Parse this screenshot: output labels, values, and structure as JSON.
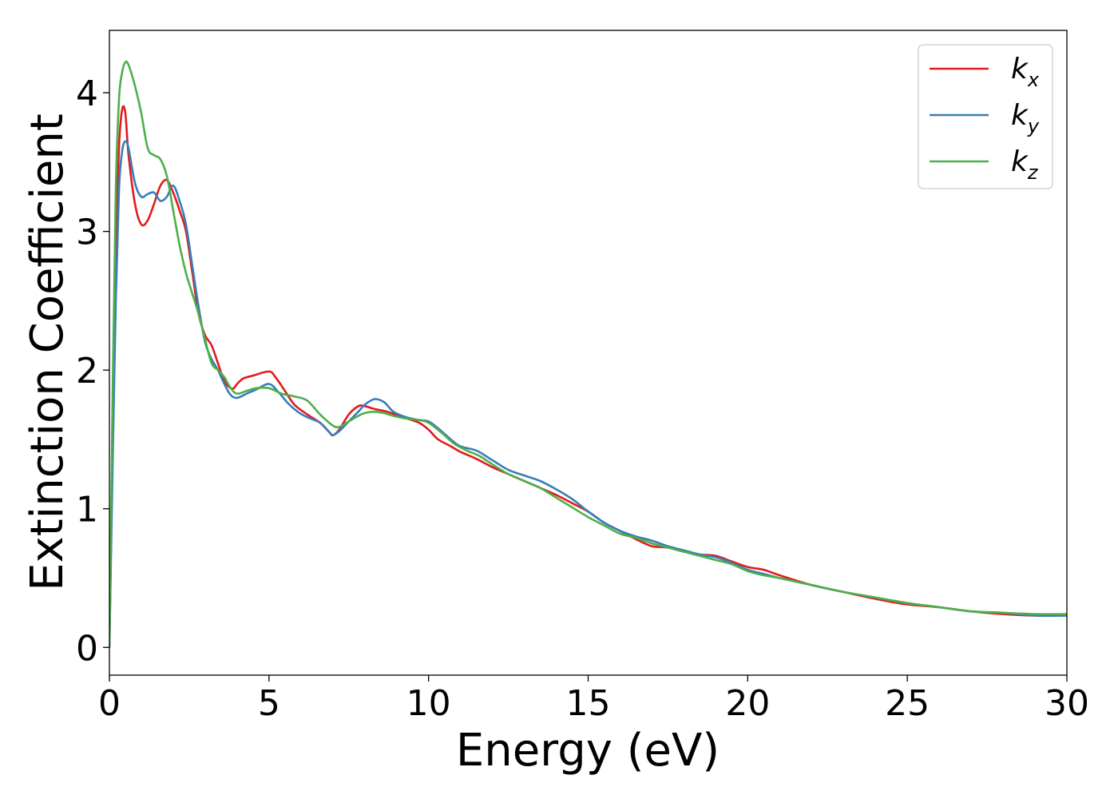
{
  "chart_data": {
    "type": "line",
    "xlabel": "Energy (eV)",
    "ylabel": "Extinction Coefficient",
    "xlim": [
      0,
      30
    ],
    "ylim": [
      -0.2,
      4.45
    ],
    "xticks": [
      0,
      5,
      10,
      15,
      20,
      25,
      30
    ],
    "xtick_labels": [
      "0",
      "5",
      "10",
      "15",
      "20",
      "25",
      "30"
    ],
    "yticks": [
      0,
      1,
      2,
      3,
      4
    ],
    "ytick_labels": [
      "0",
      "1",
      "2",
      "3",
      "4"
    ],
    "grid": false,
    "legend_position": "top-right",
    "series": [
      {
        "name": "k",
        "subscript": "x",
        "color": "#e41a1c",
        "x": [
          0,
          0.1,
          0.2,
          0.3,
          0.4,
          0.5,
          0.6,
          0.8,
          1.0,
          1.2,
          1.4,
          1.6,
          1.8,
          2.0,
          2.2,
          2.4,
          2.6,
          2.8,
          3.0,
          3.2,
          3.4,
          3.6,
          3.8,
          3.9,
          4.0,
          4.2,
          4.5,
          5.0,
          5.2,
          5.5,
          5.8,
          6.2,
          6.6,
          6.9,
          7.0,
          7.2,
          7.5,
          7.8,
          8.0,
          8.3,
          8.7,
          9.2,
          9.7,
          10.0,
          10.3,
          10.7,
          11.0,
          11.5,
          12.0,
          12.5,
          13.0,
          13.5,
          14.0,
          14.5,
          15.0,
          15.5,
          16.0,
          16.5,
          17.0,
          17.5,
          18.0,
          18.5,
          19.0,
          19.5,
          20.0,
          20.5,
          21.0,
          22.0,
          23.0,
          24.0,
          25.0,
          26.0,
          27.0,
          28.0,
          29.0,
          30.0
        ],
        "y": [
          0,
          1.5,
          2.8,
          3.6,
          3.88,
          3.85,
          3.55,
          3.2,
          3.05,
          3.08,
          3.2,
          3.33,
          3.37,
          3.28,
          3.15,
          3.0,
          2.7,
          2.4,
          2.25,
          2.18,
          2.05,
          1.92,
          1.87,
          1.87,
          1.9,
          1.94,
          1.96,
          1.99,
          1.95,
          1.85,
          1.75,
          1.68,
          1.62,
          1.55,
          1.53,
          1.57,
          1.68,
          1.74,
          1.74,
          1.72,
          1.7,
          1.66,
          1.62,
          1.57,
          1.5,
          1.45,
          1.41,
          1.36,
          1.3,
          1.25,
          1.2,
          1.15,
          1.1,
          1.04,
          0.98,
          0.9,
          0.84,
          0.78,
          0.73,
          0.72,
          0.69,
          0.67,
          0.66,
          0.62,
          0.58,
          0.56,
          0.52,
          0.45,
          0.4,
          0.35,
          0.31,
          0.29,
          0.26,
          0.24,
          0.23,
          0.23
        ]
      },
      {
        "name": "k",
        "subscript": "y",
        "color": "#377eb8",
        "x": [
          0,
          0.1,
          0.2,
          0.3,
          0.4,
          0.5,
          0.6,
          0.8,
          1.0,
          1.2,
          1.4,
          1.6,
          1.8,
          2.0,
          2.2,
          2.4,
          2.6,
          2.8,
          3.0,
          3.2,
          3.4,
          3.6,
          3.8,
          4.0,
          4.3,
          4.6,
          5.0,
          5.3,
          5.6,
          5.9,
          6.2,
          6.6,
          6.9,
          7.0,
          7.2,
          7.5,
          7.8,
          8.0,
          8.3,
          8.6,
          8.9,
          9.3,
          9.7,
          10.0,
          10.3,
          10.7,
          11.0,
          11.5,
          12.0,
          12.5,
          13.0,
          13.5,
          14.0,
          14.5,
          15.0,
          15.5,
          16.0,
          16.5,
          17.0,
          17.5,
          18.0,
          18.5,
          19.0,
          19.5,
          20.0,
          20.5,
          21.0,
          22.0,
          23.0,
          24.0,
          25.0,
          26.0,
          27.0,
          28.0,
          29.0,
          30.0
        ],
        "y": [
          0,
          1.3,
          2.5,
          3.3,
          3.58,
          3.65,
          3.6,
          3.35,
          3.25,
          3.27,
          3.28,
          3.22,
          3.25,
          3.33,
          3.22,
          3.05,
          2.75,
          2.45,
          2.2,
          2.08,
          2.0,
          1.9,
          1.82,
          1.8,
          1.83,
          1.86,
          1.9,
          1.84,
          1.76,
          1.7,
          1.66,
          1.62,
          1.55,
          1.53,
          1.56,
          1.63,
          1.7,
          1.75,
          1.79,
          1.77,
          1.7,
          1.66,
          1.64,
          1.63,
          1.58,
          1.5,
          1.45,
          1.42,
          1.35,
          1.28,
          1.24,
          1.2,
          1.14,
          1.07,
          0.98,
          0.9,
          0.84,
          0.8,
          0.77,
          0.73,
          0.7,
          0.67,
          0.65,
          0.61,
          0.56,
          0.53,
          0.5,
          0.45,
          0.4,
          0.36,
          0.32,
          0.29,
          0.26,
          0.25,
          0.23,
          0.23
        ]
      },
      {
        "name": "k",
        "subscript": "z",
        "color": "#4daf4a",
        "x": [
          0,
          0.1,
          0.2,
          0.3,
          0.4,
          0.5,
          0.6,
          0.8,
          1.0,
          1.2,
          1.4,
          1.6,
          1.8,
          2.0,
          2.2,
          2.4,
          2.6,
          2.8,
          3.0,
          3.2,
          3.4,
          3.6,
          3.8,
          4.0,
          4.3,
          4.6,
          5.0,
          5.4,
          5.8,
          6.2,
          6.6,
          7.0,
          7.2,
          7.5,
          7.8,
          8.0,
          8.3,
          8.6,
          8.9,
          9.3,
          9.7,
          10.0,
          10.4,
          10.8,
          11.2,
          11.6,
          12.0,
          12.5,
          13.0,
          13.5,
          14.0,
          14.5,
          15.0,
          15.5,
          16.0,
          16.5,
          17.0,
          17.5,
          18.0,
          18.5,
          19.0,
          19.5,
          20.0,
          20.5,
          21.0,
          22.0,
          23.0,
          24.0,
          25.0,
          26.0,
          27.0,
          28.0,
          29.0,
          30.0
        ],
        "y": [
          0,
          1.8,
          3.3,
          3.95,
          4.15,
          4.22,
          4.2,
          4.05,
          3.85,
          3.6,
          3.55,
          3.52,
          3.4,
          3.15,
          2.9,
          2.7,
          2.55,
          2.4,
          2.22,
          2.05,
          2.0,
          1.95,
          1.87,
          1.83,
          1.85,
          1.87,
          1.87,
          1.83,
          1.81,
          1.78,
          1.68,
          1.6,
          1.59,
          1.63,
          1.67,
          1.69,
          1.7,
          1.69,
          1.67,
          1.65,
          1.64,
          1.62,
          1.55,
          1.47,
          1.42,
          1.38,
          1.32,
          1.25,
          1.2,
          1.15,
          1.08,
          1.01,
          0.94,
          0.88,
          0.82,
          0.79,
          0.75,
          0.72,
          0.69,
          0.66,
          0.63,
          0.6,
          0.55,
          0.52,
          0.5,
          0.45,
          0.4,
          0.36,
          0.32,
          0.29,
          0.26,
          0.25,
          0.24,
          0.24
        ]
      }
    ]
  }
}
